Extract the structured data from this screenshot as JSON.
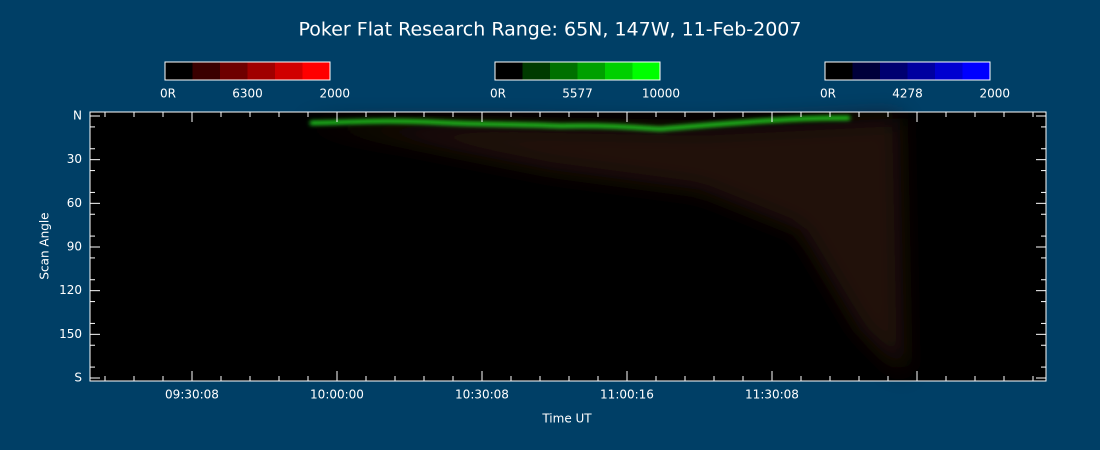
{
  "title": "Poker Flat Research Range: 65N, 147W, 11-Feb-2007",
  "colorbars": [
    {
      "labels": [
        "0R",
        "6300",
        "2000"
      ],
      "colors": [
        "#000000",
        "#3a0000",
        "#6e0000",
        "#a00000",
        "#d00000",
        "#ff0000"
      ]
    },
    {
      "labels": [
        "0R",
        "5577",
        "10000"
      ],
      "colors": [
        "#000000",
        "#003a00",
        "#007000",
        "#00a000",
        "#00d000",
        "#00ff00"
      ]
    },
    {
      "labels": [
        "0R",
        "4278",
        "2000"
      ],
      "colors": [
        "#000000",
        "#00003a",
        "#000070",
        "#0000a0",
        "#0000d0",
        "#0000ff"
      ]
    }
  ],
  "y_axis": {
    "label": "Scan Angle",
    "ylim": [
      0,
      180
    ],
    "ticks": [
      {
        "value": 0,
        "label": "N"
      },
      30,
      60,
      90,
      120,
      150,
      {
        "value": 180,
        "label": "S"
      }
    ]
  },
  "x_axis": {
    "label": "Time UT",
    "ticks": [
      "09:30:08",
      "10:00:00",
      "10:30:08",
      "11:00:16",
      "11:30:08"
    ]
  }
}
